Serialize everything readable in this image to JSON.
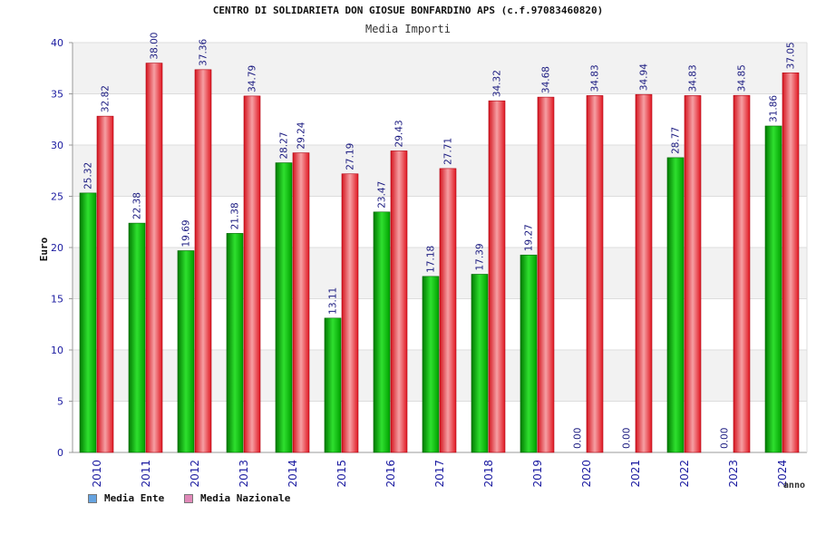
{
  "chart_data": {
    "type": "bar",
    "title": "CENTRO DI SOLIDARIETA DON GIOSUE BONFARDINO APS (c.f.97083460820)",
    "subtitle": "Media Importi",
    "ylabel": "Euro",
    "xlabel": "anno",
    "ylim": [
      0,
      40
    ],
    "yticks": [
      0,
      5,
      10,
      15,
      20,
      25,
      30,
      35,
      40
    ],
    "categories": [
      "2010",
      "2011",
      "2012",
      "2013",
      "2014",
      "2015",
      "2016",
      "2017",
      "2018",
      "2019",
      "2020",
      "2021",
      "2022",
      "2023",
      "2024"
    ],
    "series": [
      {
        "name": "Media Ente",
        "color": "#00b000",
        "legend_color": "#66a3e0",
        "values": [
          25.32,
          22.38,
          19.69,
          21.38,
          28.27,
          13.11,
          23.47,
          17.18,
          17.39,
          19.27,
          0.0,
          0.0,
          28.77,
          0.0,
          31.86
        ],
        "labels": [
          "25.32",
          "22.38",
          "19.69",
          "21.38",
          "28.27",
          "13.11",
          "23.47",
          "17.18",
          "17.39",
          "19.27",
          "0.00",
          "0.00",
          "28.77",
          "0.00",
          "31.86"
        ]
      },
      {
        "name": "Media Nazionale",
        "color": "#e8202a",
        "legend_color": "#e088b8",
        "values": [
          32.82,
          38.0,
          37.36,
          34.79,
          29.24,
          27.19,
          29.43,
          27.71,
          34.32,
          34.68,
          34.83,
          34.94,
          34.83,
          34.85,
          37.05
        ],
        "labels": [
          "32.82",
          "38.00",
          "37.36",
          "34.79",
          "29.24",
          "27.19",
          "29.43",
          "27.71",
          "34.32",
          "34.68",
          "34.83",
          "34.94",
          "34.83",
          "34.85",
          "37.05"
        ]
      }
    ],
    "grid": true,
    "legend_position": "bottom-left"
  }
}
